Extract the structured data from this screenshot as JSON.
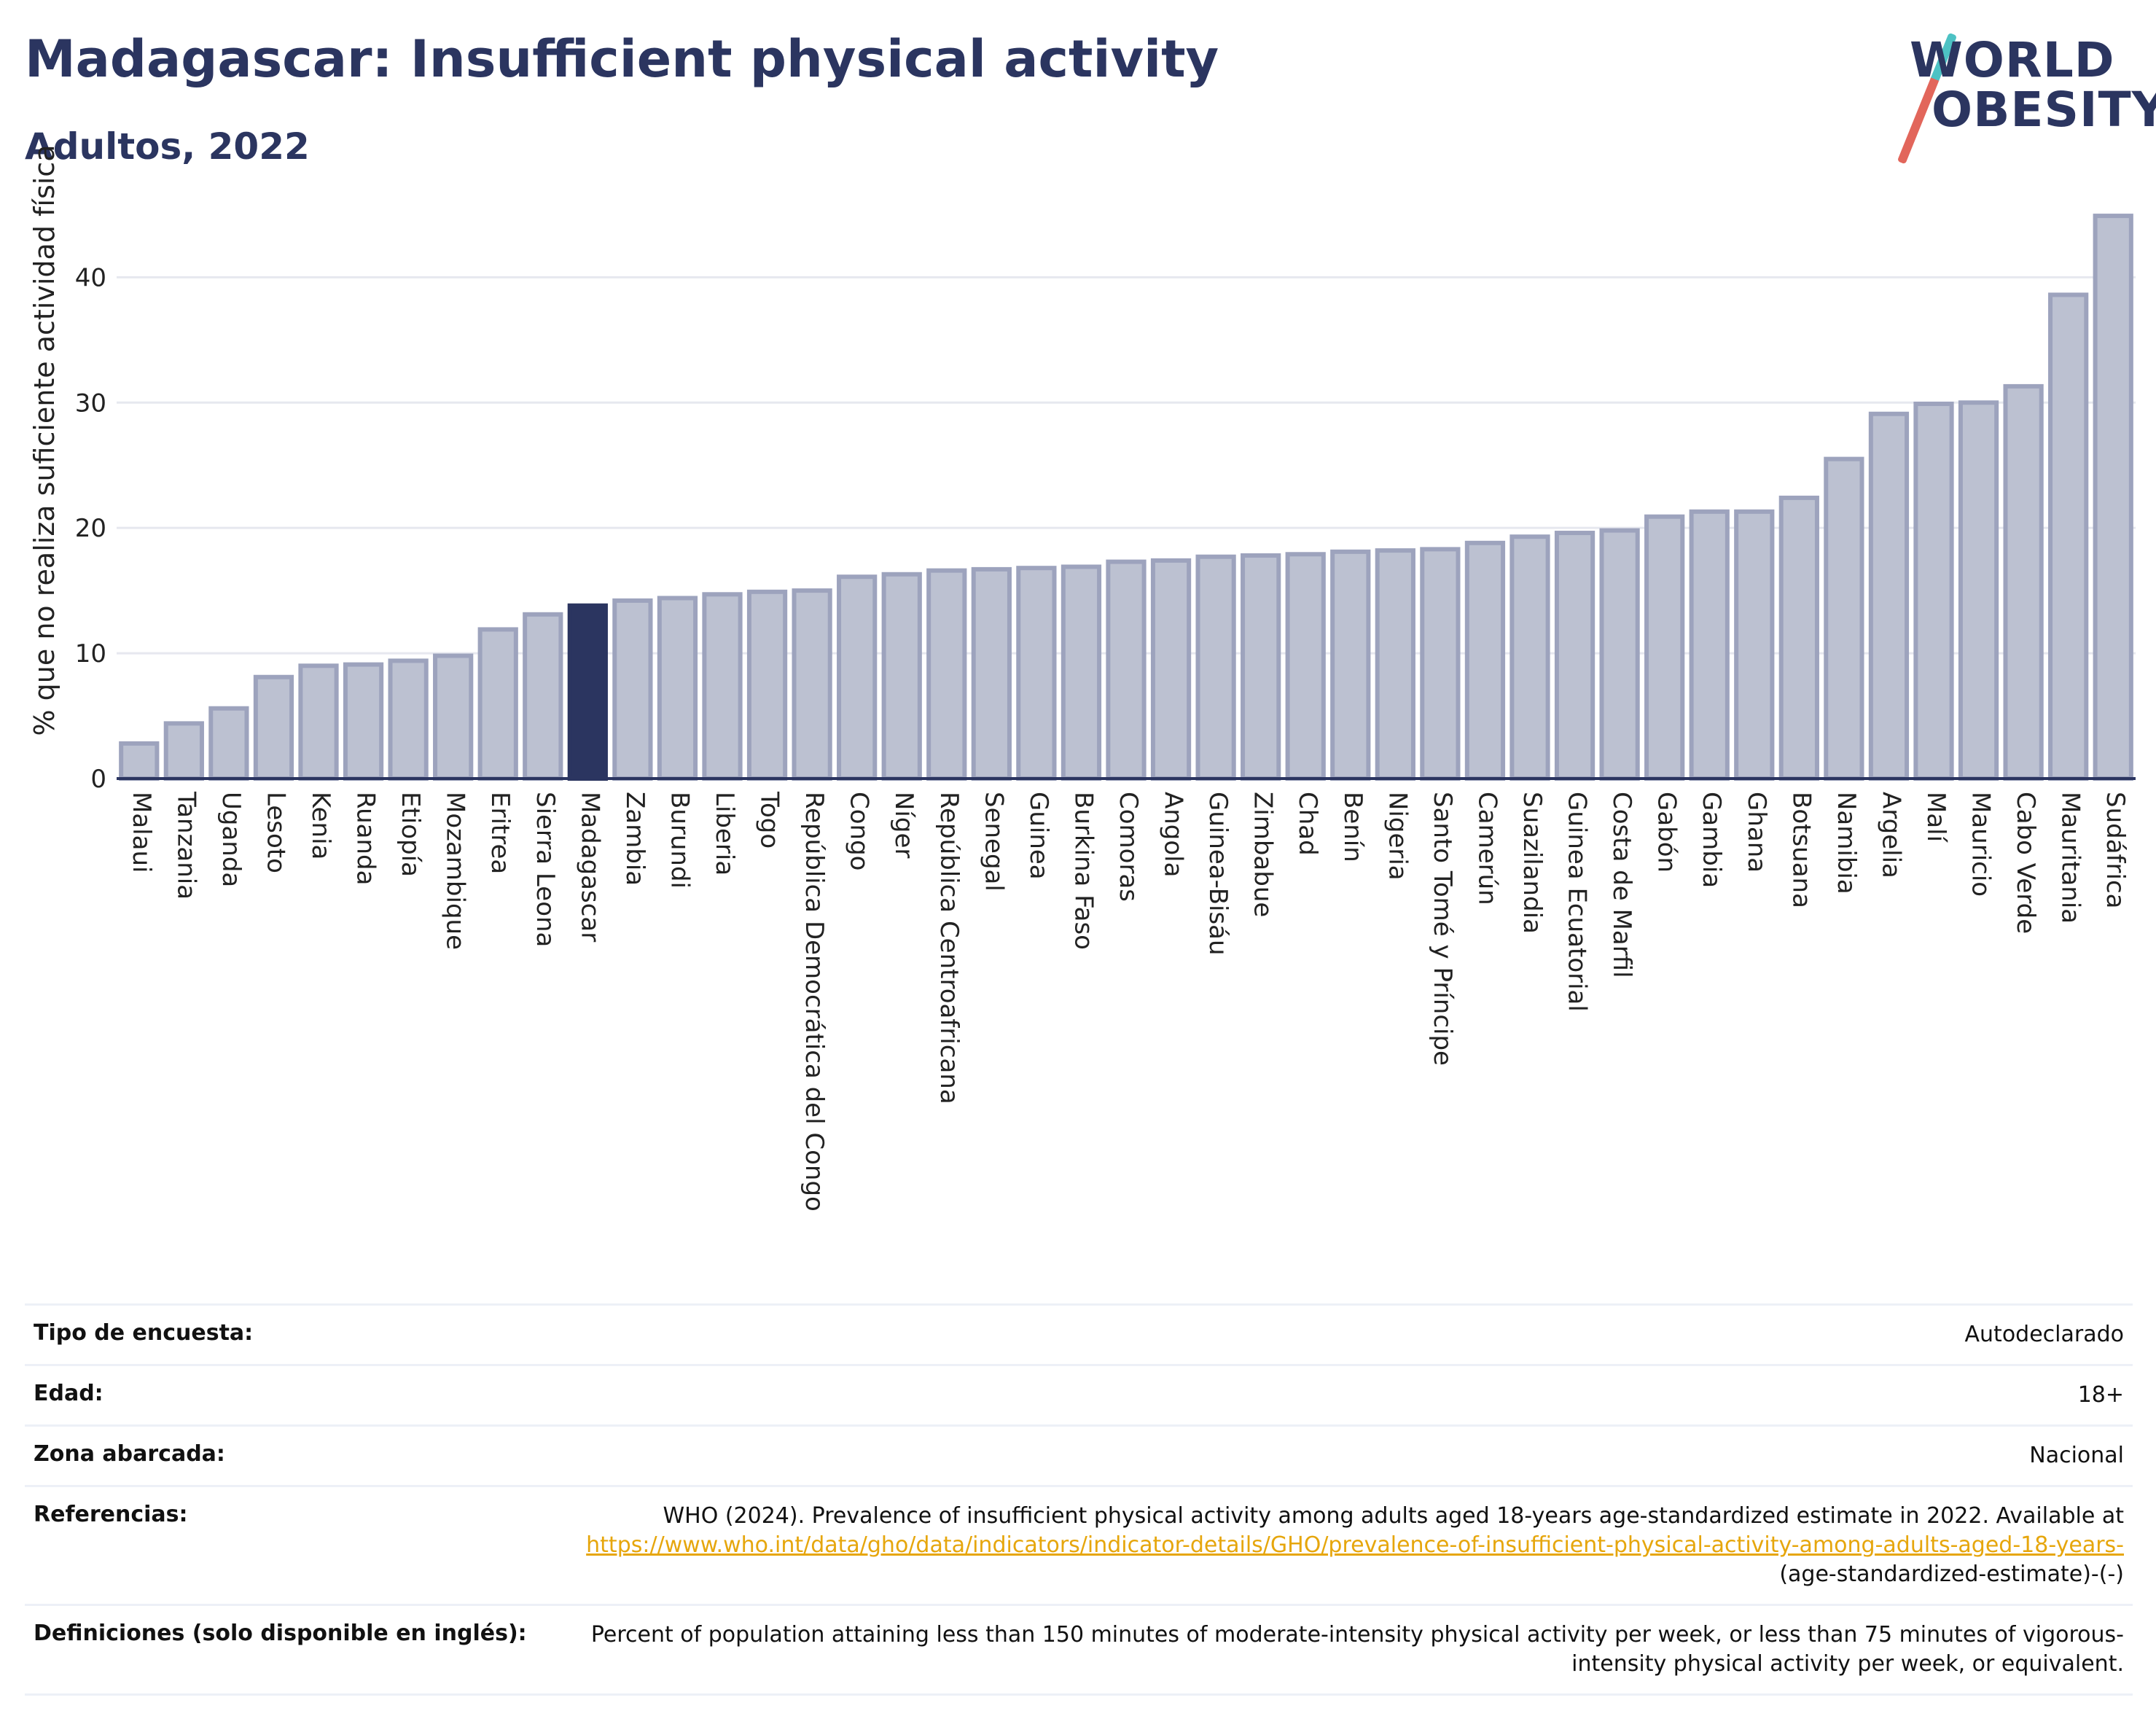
{
  "header": {
    "title": "Madagascar: Insufficient physical activity",
    "subtitle": "Adultos, 2022"
  },
  "logo": {
    "line1": "WORLD",
    "line2": "OBESITY",
    "accent_colors": [
      "#4dc2c4",
      "#e2665b"
    ]
  },
  "colors": {
    "title": "#2b3560",
    "highlight_bar": "#2b3560",
    "bar_fill": "#bcc1d1",
    "bar_stroke": "#9da3bd",
    "grid": "#e6e8ef",
    "link": "#e6a60c"
  },
  "chart_data": {
    "type": "bar",
    "ylabel": "% que no realiza suficiente actividad física",
    "ylim": [
      0,
      47
    ],
    "yticks": [
      0,
      10,
      20,
      30,
      40
    ],
    "grid": true,
    "highlight": "Madagascar",
    "categories": [
      "Malaui",
      "Tanzania",
      "Uganda",
      "Lesoto",
      "Kenia",
      "Ruanda",
      "Etiopía",
      "Mozambique",
      "Eritrea",
      "Sierra Leona",
      "Madagascar",
      "Zambia",
      "Burundi",
      "Liberia",
      "Togo",
      "República Democrática del Congo",
      "Congo",
      "Níger",
      "República Centroafricana",
      "Senegal",
      "Guinea",
      "Burkina Faso",
      "Comoras",
      "Angola",
      "Guinea-Bisáu",
      "Zimbabue",
      "Chad",
      "Benín",
      "Nigeria",
      "Santo Tomé y Príncipe",
      "Camerún",
      "Suazilandia",
      "Guinea Ecuatorial",
      "Costa de Marfil",
      "Gabón",
      "Gambia",
      "Ghana",
      "Botsuana",
      "Namibia",
      "Argelia",
      "Malí",
      "Mauricio",
      "Cabo Verde",
      "Mauritania",
      "Sudáfrica"
    ],
    "values": [
      2.8,
      4.4,
      5.6,
      8.1,
      9.0,
      9.1,
      9.4,
      9.8,
      11.9,
      13.1,
      13.8,
      14.2,
      14.4,
      14.7,
      14.9,
      15.0,
      16.1,
      16.3,
      16.6,
      16.7,
      16.8,
      16.9,
      17.3,
      17.4,
      17.7,
      17.8,
      17.9,
      18.1,
      18.2,
      18.3,
      18.8,
      19.3,
      19.6,
      19.8,
      20.9,
      21.3,
      21.3,
      22.4,
      25.5,
      29.1,
      29.9,
      30.0,
      31.3,
      38.6,
      44.9
    ]
  },
  "info": {
    "rows": [
      {
        "label": "Tipo de encuesta:",
        "value": "Autodeclarado"
      },
      {
        "label": "Edad:",
        "value": "18+"
      },
      {
        "label": "Zona abarcada:",
        "value": "Nacional"
      }
    ],
    "references": {
      "label": "Referencias:",
      "text": "WHO (2024). Prevalence of insufficient physical activity among adults aged 18-years age-standardized estimate in 2022. Available at",
      "link": "https://www.who.int/data/gho/data/indicators/indicator-details/GHO/prevalence-of-insufficient-physical-activity-among-adults-aged-18-years-",
      "suffix": "(age-standardized-estimate)-(-)"
    },
    "definitions": {
      "label": "Definiciones (solo disponible en inglés):",
      "text": "Percent of population attaining less than 150 minutes of moderate-intensity physical activity per week, or less than 75 minutes of vigorous-intensity physical activity per week, or equivalent."
    }
  }
}
